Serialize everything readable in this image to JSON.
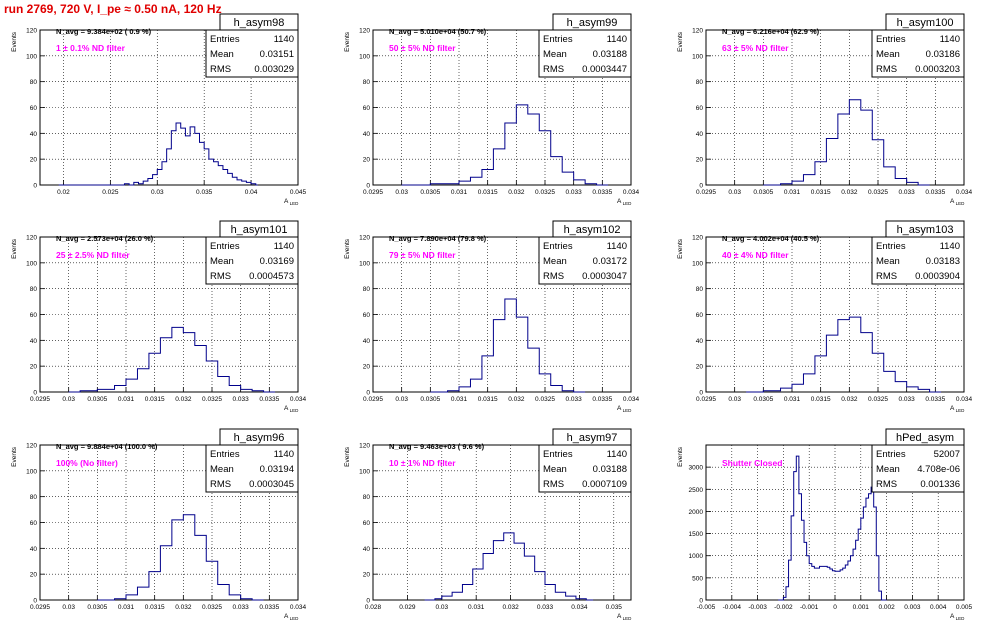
{
  "page": {
    "title": "run 2769,   720 V, I_pe ≈ 0.50 nA, 120 Hz",
    "title_color": "#e00000",
    "axis_title_x": "A",
    "axis_title_x_sub": "LED",
    "axis_title_y": "Events",
    "hist_color": "#00008b",
    "grid_color": "#000000",
    "annotation_color": "#ff00ff",
    "stat_labels": [
      "Entries",
      "Mean",
      "RMS"
    ]
  },
  "chart_data": [
    {
      "type": "histogram",
      "name": "h_asym98",
      "navg": "N_avg = 9.384e+02 ( 0.9 %)",
      "filter": "1 ± 0.1% ND filter",
      "stats": {
        "entries": "1140",
        "mean": "0.03151",
        "rms": "0.003029"
      },
      "xticks": [
        "0.02",
        "0.025",
        "0.03",
        "0.035",
        "0.04",
        "0.045"
      ],
      "xlim": [
        0.0175,
        0.045
      ],
      "yticks": [
        "0",
        "20",
        "40",
        "60",
        "80",
        "100",
        "120"
      ],
      "ylim": [
        0,
        120
      ],
      "bins": [
        [
          0.0195,
          0.0265,
          0
        ],
        [
          0.0265,
          1
        ],
        [
          0.027,
          0
        ],
        [
          0.0275,
          2
        ],
        [
          0.028,
          1
        ],
        [
          0.0285,
          3
        ],
        [
          0.029,
          5
        ],
        [
          0.0295,
          8
        ],
        [
          0.03,
          12
        ],
        [
          0.0305,
          18
        ],
        [
          0.031,
          28
        ],
        [
          0.0315,
          42
        ],
        [
          0.032,
          48
        ],
        [
          0.0325,
          44
        ],
        [
          0.033,
          38
        ],
        [
          0.0335,
          45
        ],
        [
          0.034,
          40
        ],
        [
          0.0345,
          33
        ],
        [
          0.035,
          28
        ],
        [
          0.0355,
          20
        ],
        [
          0.036,
          18
        ],
        [
          0.0365,
          15
        ],
        [
          0.037,
          12
        ],
        [
          0.0375,
          9
        ],
        [
          0.038,
          6
        ],
        [
          0.0385,
          4
        ],
        [
          0.039,
          3
        ],
        [
          0.0395,
          2
        ],
        [
          0.04,
          1
        ],
        [
          0.0405,
          0
        ]
      ]
    },
    {
      "type": "histogram",
      "name": "h_asym99",
      "navg": "N_avg = 5.010e+04 (50.7 %)",
      "filter": "50 ± 5% ND filter",
      "stats": {
        "entries": "1140",
        "mean": "0.03188",
        "rms": "0.0003447"
      },
      "xticks": [
        "0.0295",
        "0.03",
        "0.0305",
        "0.031",
        "0.0315",
        "0.032",
        "0.0325",
        "0.033",
        "0.0335",
        "0.034"
      ],
      "xlim": [
        0.0295,
        0.034
      ],
      "yticks": [
        "0",
        "20",
        "40",
        "60",
        "80",
        "100",
        "120"
      ],
      "ylim": [
        0,
        120
      ],
      "bins": [
        [
          0.03,
          0
        ],
        [
          0.0305,
          1
        ],
        [
          0.031,
          3
        ],
        [
          0.0312,
          6
        ],
        [
          0.0314,
          12
        ],
        [
          0.0316,
          28
        ],
        [
          0.0318,
          48
        ],
        [
          0.032,
          62
        ],
        [
          0.0322,
          55
        ],
        [
          0.0324,
          42
        ],
        [
          0.0326,
          22
        ],
        [
          0.0328,
          10
        ],
        [
          0.033,
          4
        ],
        [
          0.0332,
          1
        ],
        [
          0.0334,
          0
        ]
      ]
    },
    {
      "type": "histogram",
      "name": "h_asym100",
      "navg": "N_avg = 6.216e+04 (62.9 %)",
      "filter": "63 ± 5% ND filter",
      "stats": {
        "entries": "1140",
        "mean": "0.03186",
        "rms": "0.0003203"
      },
      "xticks": [
        "0.0295",
        "0.03",
        "0.0305",
        "0.031",
        "0.0315",
        "0.032",
        "0.0325",
        "0.033",
        "0.0335",
        "0.034"
      ],
      "xlim": [
        0.0295,
        0.034
      ],
      "yticks": [
        "0",
        "20",
        "40",
        "60",
        "80",
        "100",
        "120"
      ],
      "ylim": [
        0,
        120
      ],
      "bins": [
        [
          0.0305,
          0
        ],
        [
          0.0308,
          1
        ],
        [
          0.031,
          3
        ],
        [
          0.0312,
          8
        ],
        [
          0.0314,
          18
        ],
        [
          0.0316,
          36
        ],
        [
          0.0318,
          55
        ],
        [
          0.032,
          66
        ],
        [
          0.0322,
          58
        ],
        [
          0.0324,
          35
        ],
        [
          0.0326,
          14
        ],
        [
          0.0328,
          5
        ],
        [
          0.033,
          2
        ],
        [
          0.0332,
          0
        ]
      ]
    },
    {
      "type": "histogram",
      "name": "h_asym101",
      "navg": "N_avg = 2.573e+04 (26.0 %)",
      "filter": "25 ± 2.5% ND filter",
      "stats": {
        "entries": "1140",
        "mean": "0.03169",
        "rms": "0.0004573"
      },
      "xticks": [
        "0.0295",
        "0.03",
        "0.0305",
        "0.031",
        "0.0315",
        "0.032",
        "0.0325",
        "0.033",
        "0.0335",
        "0.034"
      ],
      "xlim": [
        0.0295,
        0.034
      ],
      "yticks": [
        "0",
        "20",
        "40",
        "60",
        "80",
        "100",
        "120"
      ],
      "ylim": [
        0,
        120
      ],
      "bins": [
        [
          0.03,
          0
        ],
        [
          0.0302,
          1
        ],
        [
          0.0305,
          2
        ],
        [
          0.0308,
          5
        ],
        [
          0.031,
          10
        ],
        [
          0.0312,
          18
        ],
        [
          0.0314,
          30
        ],
        [
          0.0316,
          42
        ],
        [
          0.0318,
          50
        ],
        [
          0.032,
          46
        ],
        [
          0.0322,
          36
        ],
        [
          0.0324,
          24
        ],
        [
          0.0326,
          12
        ],
        [
          0.0328,
          5
        ],
        [
          0.033,
          2
        ],
        [
          0.0332,
          1
        ],
        [
          0.0334,
          0
        ]
      ]
    },
    {
      "type": "histogram",
      "name": "h_asym102",
      "navg": "N_avg = 7.890e+04 (79.8 %)",
      "filter": "79 ± 5% ND filter",
      "stats": {
        "entries": "1140",
        "mean": "0.03172",
        "rms": "0.0003047"
      },
      "xticks": [
        "0.0295",
        "0.03",
        "0.0305",
        "0.031",
        "0.0315",
        "0.032",
        "0.0325",
        "0.033",
        "0.0335",
        "0.034"
      ],
      "xlim": [
        0.0295,
        0.034
      ],
      "yticks": [
        "0",
        "20",
        "40",
        "60",
        "80",
        "100",
        "120"
      ],
      "ylim": [
        0,
        120
      ],
      "bins": [
        [
          0.0305,
          0
        ],
        [
          0.0308,
          1
        ],
        [
          0.031,
          4
        ],
        [
          0.0312,
          10
        ],
        [
          0.0314,
          28
        ],
        [
          0.0316,
          56
        ],
        [
          0.0318,
          72
        ],
        [
          0.032,
          58
        ],
        [
          0.0322,
          34
        ],
        [
          0.0324,
          14
        ],
        [
          0.0326,
          5
        ],
        [
          0.0328,
          1
        ],
        [
          0.033,
          0
        ]
      ]
    },
    {
      "type": "histogram",
      "name": "h_asym103",
      "navg": "N_avg = 4.002e+04 (40.5 %)",
      "filter": "40 ± 4% ND filter",
      "stats": {
        "entries": "1140",
        "mean": "0.03183",
        "rms": "0.0003904"
      },
      "xticks": [
        "0.0295",
        "0.03",
        "0.0305",
        "0.031",
        "0.0315",
        "0.032",
        "0.0325",
        "0.033",
        "0.0335",
        "0.034"
      ],
      "xlim": [
        0.0295,
        0.034
      ],
      "yticks": [
        "0",
        "20",
        "40",
        "60",
        "80",
        "100",
        "120"
      ],
      "ylim": [
        0,
        120
      ],
      "bins": [
        [
          0.0302,
          0
        ],
        [
          0.0305,
          1
        ],
        [
          0.0308,
          3
        ],
        [
          0.031,
          6
        ],
        [
          0.0312,
          14
        ],
        [
          0.0314,
          28
        ],
        [
          0.0316,
          44
        ],
        [
          0.0318,
          56
        ],
        [
          0.032,
          58
        ],
        [
          0.0322,
          46
        ],
        [
          0.0324,
          30
        ],
        [
          0.0326,
          16
        ],
        [
          0.0328,
          8
        ],
        [
          0.033,
          4
        ],
        [
          0.0332,
          2
        ],
        [
          0.0334,
          0
        ]
      ]
    },
    {
      "type": "histogram",
      "name": "h_asym96",
      "navg": "N_avg = 9.884e+04 (100.0 %)",
      "filter": "100% (No filter)",
      "stats": {
        "entries": "1140",
        "mean": "0.03194",
        "rms": "0.0003045"
      },
      "xticks": [
        "0.0295",
        "0.03",
        "0.0305",
        "0.031",
        "0.0315",
        "0.032",
        "0.0325",
        "0.033",
        "0.0335",
        "0.034"
      ],
      "xlim": [
        0.0295,
        0.034
      ],
      "yticks": [
        "0",
        "20",
        "40",
        "60",
        "80",
        "100",
        "120"
      ],
      "ylim": [
        0,
        120
      ],
      "bins": [
        [
          0.0305,
          0
        ],
        [
          0.0308,
          1
        ],
        [
          0.031,
          4
        ],
        [
          0.0312,
          10
        ],
        [
          0.0314,
          22
        ],
        [
          0.0316,
          42
        ],
        [
          0.0318,
          62
        ],
        [
          0.032,
          66
        ],
        [
          0.0322,
          50
        ],
        [
          0.0324,
          30
        ],
        [
          0.0326,
          12
        ],
        [
          0.0328,
          4
        ],
        [
          0.033,
          1
        ],
        [
          0.0332,
          0
        ]
      ]
    },
    {
      "type": "histogram",
      "name": "h_asym97",
      "navg": "N_avg = 9.463e+03 ( 9.6 %)",
      "filter": "10 ± 1% ND filter",
      "stats": {
        "entries": "1140",
        "mean": "0.03188",
        "rms": "0.0007109"
      },
      "xticks": [
        "0.028",
        "0.029",
        "0.03",
        "0.031",
        "0.032",
        "0.033",
        "0.034",
        "0.035"
      ],
      "xlim": [
        0.028,
        0.0355
      ],
      "yticks": [
        "0",
        "20",
        "40",
        "60",
        "80",
        "100",
        "120"
      ],
      "ylim": [
        0,
        120
      ],
      "bins": [
        [
          0.0295,
          0
        ],
        [
          0.0298,
          1
        ],
        [
          0.03,
          3
        ],
        [
          0.0303,
          6
        ],
        [
          0.0306,
          12
        ],
        [
          0.0309,
          24
        ],
        [
          0.0312,
          36
        ],
        [
          0.0315,
          46
        ],
        [
          0.0318,
          52
        ],
        [
          0.0321,
          44
        ],
        [
          0.0324,
          34
        ],
        [
          0.0327,
          22
        ],
        [
          0.033,
          12
        ],
        [
          0.0333,
          6
        ],
        [
          0.0336,
          3
        ],
        [
          0.0339,
          1
        ],
        [
          0.0342,
          0
        ]
      ]
    },
    {
      "type": "histogram",
      "name": "hPed_asym",
      "navg": "",
      "filter": "Shutter Closed",
      "stats": {
        "entries": "52007",
        "mean": "4.708e-06",
        "rms": "0.001336"
      },
      "xticks": [
        "-0.005",
        "-0.004",
        "-0.003",
        "-0.002",
        "-0.001",
        "0",
        "0.001",
        "0.002",
        "0.003",
        "0.004",
        "0.005"
      ],
      "xlim": [
        -0.005,
        0.005
      ],
      "yticks": [
        "0",
        "500",
        "1000",
        "1500",
        "2000",
        "2500",
        "3000"
      ],
      "ylim": [
        0,
        3500
      ],
      "bins": [
        [
          -0.0022,
          0
        ],
        [
          -0.002,
          60
        ],
        [
          -0.0019,
          300
        ],
        [
          -0.0018,
          900
        ],
        [
          -0.0017,
          1900
        ],
        [
          -0.0016,
          2900
        ],
        [
          -0.0015,
          3250
        ],
        [
          -0.0014,
          2400
        ],
        [
          -0.0013,
          1800
        ],
        [
          -0.0012,
          1300
        ],
        [
          -0.0011,
          1000
        ],
        [
          -0.001,
          820
        ],
        [
          -0.0009,
          760
        ],
        [
          -0.0008,
          720
        ],
        [
          -0.0007,
          720
        ],
        [
          -0.0006,
          760
        ],
        [
          -0.0005,
          760
        ],
        [
          -0.0004,
          760
        ],
        [
          -0.0003,
          740
        ],
        [
          -0.0002,
          700
        ],
        [
          -0.0001,
          660
        ],
        [
          0,
          650
        ],
        [
          0.0001,
          650
        ],
        [
          0.0002,
          680
        ],
        [
          0.0003,
          720
        ],
        [
          0.0004,
          790
        ],
        [
          0.0005,
          880
        ],
        [
          0.0006,
          1000
        ],
        [
          0.0007,
          1150
        ],
        [
          0.0008,
          1350
        ],
        [
          0.0009,
          1600
        ],
        [
          0.001,
          1850
        ],
        [
          0.0011,
          2100
        ],
        [
          0.0012,
          2300
        ],
        [
          0.0013,
          2400
        ],
        [
          0.0014,
          2550
        ],
        [
          0.0015,
          2100
        ],
        [
          0.0016,
          1000
        ],
        [
          0.0017,
          200
        ],
        [
          0.0018,
          0
        ]
      ]
    }
  ]
}
